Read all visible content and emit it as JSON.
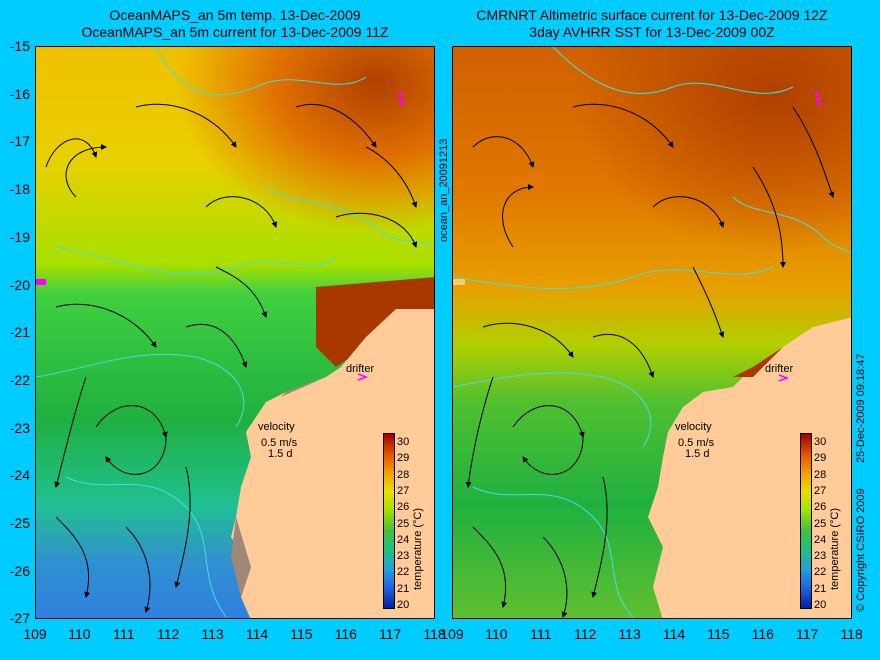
{
  "left_panel": {
    "title_line1": "OceanMAPS_an 5m temp. 13-Dec-2009",
    "title_line2": "OceanMAPS_an 5m current for 13-Dec-2009 11Z",
    "drifter_label": "drifter",
    "velocity_label": "velocity",
    "velocity_value": "0.5 m/s",
    "velocity_days": "1.5 d"
  },
  "right_panel": {
    "title_line1": "CMRNRT Altimetric surface current for 13-Dec-2009 12Z",
    "title_line2": "3day AVHRR SST for 13-Dec-2009 00Z",
    "drifter_label": "drifter",
    "velocity_label": "velocity",
    "velocity_value": "0.5 m/s",
    "velocity_days": "1.5 d"
  },
  "axis": {
    "lat_ticks": [
      "-15",
      "-16",
      "-17",
      "-18",
      "-19",
      "-20",
      "-21",
      "-22",
      "-23",
      "-24",
      "-25",
      "-26",
      "-27"
    ],
    "lon_ticks": [
      "109",
      "110",
      "111",
      "112",
      "113",
      "114",
      "115",
      "116",
      "117",
      "118"
    ]
  },
  "colorbar": {
    "title": "temperature (°C)",
    "ticks": [
      "30",
      "29",
      "28",
      "27",
      "26",
      "25",
      "24",
      "23",
      "22",
      "21",
      "20"
    ]
  },
  "side_labels": {
    "middle": "ocean_an_20091213",
    "right_copyright": "© Copyright CSIRO 2009",
    "right_date": "25-Dec-2009 09:18:47"
  },
  "colors": {
    "background": "#00ccff",
    "land": "#ffcc99",
    "drifter": "#ff00ff",
    "contour": "#40e0e0"
  }
}
